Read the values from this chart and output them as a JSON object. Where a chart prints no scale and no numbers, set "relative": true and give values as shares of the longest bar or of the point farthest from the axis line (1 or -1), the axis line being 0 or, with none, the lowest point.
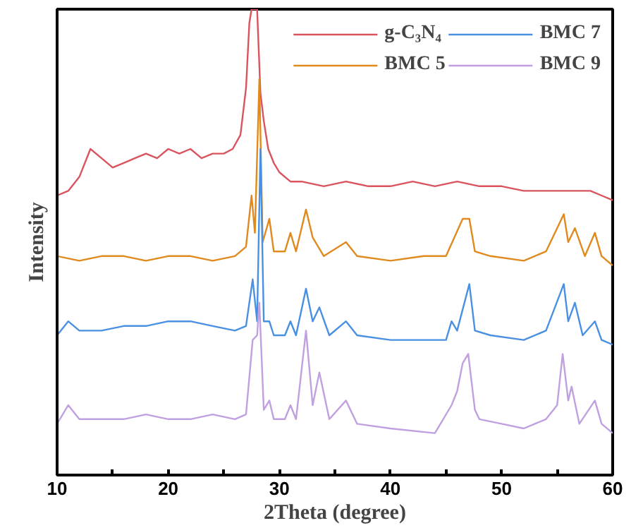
{
  "chart_data": {
    "type": "line",
    "relative": true,
    "xlabel": "2Theta (degree)",
    "ylabel": "Intensity",
    "xlim": [
      10,
      60
    ],
    "xticks": [
      10,
      {
        "value": 15,
        "label": null
      },
      20,
      {
        "value": 25,
        "label": null
      },
      30,
      {
        "value": 35,
        "label": null
      },
      40,
      {
        "value": 45,
        "label": null
      },
      50,
      {
        "value": 55,
        "label": null
      },
      60
    ],
    "legend": "top right",
    "grid": false,
    "marker": "none",
    "line_style": "solid",
    "series": [
      {
        "name": "g-C₃N₄",
        "color": "#d9545e",
        "x": [
          10,
          11,
          12,
          13,
          14,
          15,
          16,
          17,
          18,
          19,
          20,
          21,
          22,
          23,
          24,
          25,
          25.8,
          26.5,
          27,
          27.3,
          27.5,
          28,
          28.3,
          28.6,
          29,
          29.5,
          30,
          31,
          32,
          34,
          36,
          38,
          40,
          42,
          44,
          46,
          48,
          50,
          52,
          54,
          56,
          58,
          59,
          60
        ],
        "values": [
          0.6,
          0.61,
          0.64,
          0.7,
          0.68,
          0.66,
          0.67,
          0.68,
          0.69,
          0.68,
          0.7,
          0.69,
          0.7,
          0.68,
          0.69,
          0.69,
          0.7,
          0.73,
          0.83,
          0.97,
          1,
          1,
          0.82,
          0.76,
          0.7,
          0.67,
          0.65,
          0.63,
          0.63,
          0.62,
          0.63,
          0.62,
          0.62,
          0.63,
          0.62,
          0.63,
          0.62,
          0.62,
          0.61,
          0.61,
          0.61,
          0.61,
          0.6,
          0.59
        ]
      },
      {
        "name": "BMC 5",
        "color": "#e08a1e",
        "x": [
          10,
          12,
          14,
          16,
          18,
          20,
          22,
          24,
          26,
          27,
          27.5,
          27.8,
          28.2,
          28.5,
          29.1,
          29.5,
          30.5,
          31,
          31.5,
          32.4,
          33,
          34,
          36,
          37,
          40,
          43,
          45,
          46.5,
          47.1,
          47.6,
          49,
          52,
          54,
          55.6,
          56,
          56.6,
          57.5,
          58.4,
          59,
          60
        ],
        "values": [
          0.47,
          0.46,
          0.47,
          0.47,
          0.46,
          0.47,
          0.47,
          0.46,
          0.47,
          0.49,
          0.6,
          0.52,
          0.85,
          0.5,
          0.55,
          0.48,
          0.48,
          0.52,
          0.48,
          0.57,
          0.51,
          0.47,
          0.5,
          0.47,
          0.46,
          0.47,
          0.47,
          0.55,
          0.55,
          0.48,
          0.47,
          0.46,
          0.48,
          0.56,
          0.5,
          0.53,
          0.47,
          0.52,
          0.47,
          0.45
        ]
      },
      {
        "name": "BMC 7",
        "color": "#4a90e2",
        "x": [
          10,
          11,
          12,
          14,
          16,
          18,
          20,
          22,
          24,
          26,
          27,
          27.6,
          28,
          28.3,
          28.6,
          29.1,
          29.5,
          30.5,
          31,
          31.5,
          32.4,
          33,
          33.6,
          34.5,
          36,
          37,
          40,
          43,
          45,
          45.5,
          46,
          47.1,
          47.6,
          49,
          52,
          54,
          55.6,
          56,
          56.6,
          57.3,
          58.4,
          59,
          60
        ],
        "values": [
          0.3,
          0.33,
          0.31,
          0.31,
          0.32,
          0.32,
          0.33,
          0.33,
          0.32,
          0.31,
          0.32,
          0.42,
          0.33,
          0.7,
          0.33,
          0.33,
          0.3,
          0.3,
          0.33,
          0.3,
          0.4,
          0.33,
          0.36,
          0.3,
          0.33,
          0.3,
          0.29,
          0.29,
          0.29,
          0.33,
          0.31,
          0.41,
          0.31,
          0.3,
          0.29,
          0.31,
          0.41,
          0.33,
          0.37,
          0.3,
          0.33,
          0.29,
          0.28
        ]
      },
      {
        "name": "BMC 9",
        "color": "#c0a0e0",
        "x": [
          10,
          11,
          12,
          14,
          16,
          18,
          20,
          22,
          24,
          26,
          27,
          27.6,
          28,
          28.2,
          28.6,
          29.1,
          29.5,
          30.5,
          31,
          31.5,
          32.4,
          33,
          33.6,
          34.5,
          36,
          37,
          40,
          44,
          45.5,
          46,
          46.5,
          47,
          47.6,
          48,
          50,
          52,
          54,
          55,
          55.5,
          56,
          56.3,
          57,
          58.4,
          59,
          60
        ],
        "values": [
          0.11,
          0.15,
          0.12,
          0.12,
          0.12,
          0.13,
          0.12,
          0.12,
          0.13,
          0.12,
          0.13,
          0.29,
          0.3,
          0.37,
          0.14,
          0.16,
          0.12,
          0.12,
          0.15,
          0.12,
          0.31,
          0.15,
          0.22,
          0.12,
          0.16,
          0.11,
          0.1,
          0.09,
          0.15,
          0.18,
          0.24,
          0.26,
          0.14,
          0.12,
          0.11,
          0.1,
          0.12,
          0.15,
          0.26,
          0.16,
          0.19,
          0.11,
          0.16,
          0.11,
          0.09
        ]
      }
    ]
  }
}
